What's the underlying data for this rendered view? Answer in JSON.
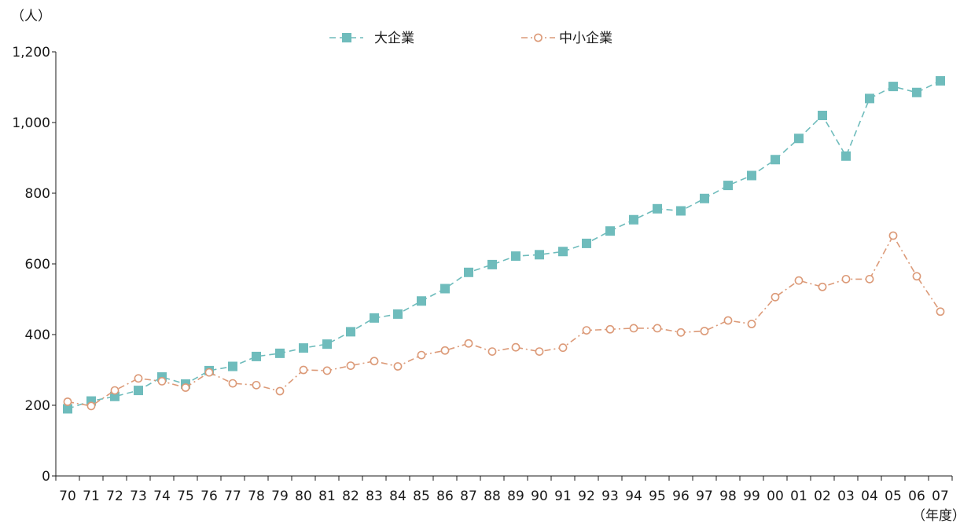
{
  "chart_data": {
    "type": "line",
    "title": "",
    "ylabel": "（人）",
    "xlabel": "（年度）",
    "ylim": [
      0,
      1200
    ],
    "yticks": [
      0,
      200,
      400,
      600,
      800,
      1000,
      1200
    ],
    "ytick_labels": [
      "0",
      "200",
      "400",
      "600",
      "800",
      "1,000",
      "1,200"
    ],
    "grid": false,
    "legend_position": "top-center",
    "x": [
      "70",
      "71",
      "72",
      "73",
      "74",
      "75",
      "76",
      "77",
      "78",
      "79",
      "80",
      "81",
      "82",
      "83",
      "84",
      "85",
      "86",
      "87",
      "88",
      "89",
      "90",
      "91",
      "92",
      "93",
      "94",
      "95",
      "96",
      "97",
      "98",
      "99",
      "00",
      "01",
      "02",
      "03",
      "04",
      "05",
      "06",
      "07"
    ],
    "series": [
      {
        "name": "大企業",
        "color": "#6fbcbc",
        "marker": "square",
        "line_style": "dashed",
        "values": [
          190,
          212,
          225,
          242,
          280,
          260,
          298,
          310,
          338,
          347,
          362,
          373,
          408,
          447,
          458,
          495,
          530,
          576,
          598,
          622,
          626,
          635,
          658,
          693,
          725,
          756,
          750,
          785,
          822,
          850,
          895,
          955,
          1020,
          905,
          1068,
          1102,
          1085,
          1118
        ]
      },
      {
        "name": "中小企業",
        "color": "#dc9a78",
        "marker": "circle-open",
        "line_style": "dash-dot",
        "values": [
          210,
          198,
          242,
          276,
          268,
          250,
          293,
          262,
          257,
          240,
          300,
          298,
          312,
          325,
          310,
          342,
          355,
          375,
          352,
          364,
          352,
          363,
          412,
          415,
          418,
          418,
          406,
          410,
          440,
          430,
          506,
          553,
          535,
          557,
          557,
          680,
          565,
          465
        ]
      }
    ]
  }
}
